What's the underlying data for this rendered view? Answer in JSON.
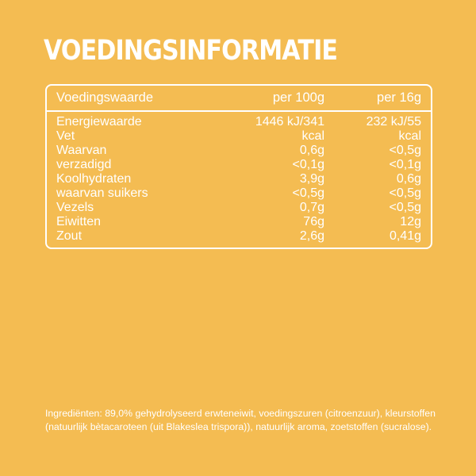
{
  "title": "VOEDINGSINFORMATIE",
  "table": {
    "headers": [
      "Voedingswaarde",
      "per 100g",
      "per 16g"
    ],
    "rows": [
      [
        "Energiewaarde",
        "1446 kJ/341",
        "232 kJ/55"
      ],
      [
        "Vet",
        "kcal",
        "kcal"
      ],
      [
        "Waarvan",
        "0,6g",
        "<0,5g"
      ],
      [
        "verzadigd",
        "<0,1g",
        "<0,1g"
      ],
      [
        "Koolhydraten",
        "3,9g",
        "0,6g"
      ],
      [
        "waarvan suikers",
        "<0,5g",
        "<0,5g"
      ],
      [
        "Vezels",
        "0,7g",
        "<0,5g"
      ],
      [
        "Eiwitten",
        "76g",
        "12g"
      ],
      [
        "Zout",
        "2,6g",
        "0,41g"
      ]
    ]
  },
  "ingredients": "Ingrediënten: 89,0% gehydrolyseerd erwteneiwit, voedingszuren (citroenzuur), kleurstoffen (natuurlijk bètacaroteen (uit Blakeslea trispora)), natuurlijk aroma, zoetstoffen (sucralose).",
  "colors": {
    "background": "#F4BC52",
    "text": "#FFFFFF"
  }
}
